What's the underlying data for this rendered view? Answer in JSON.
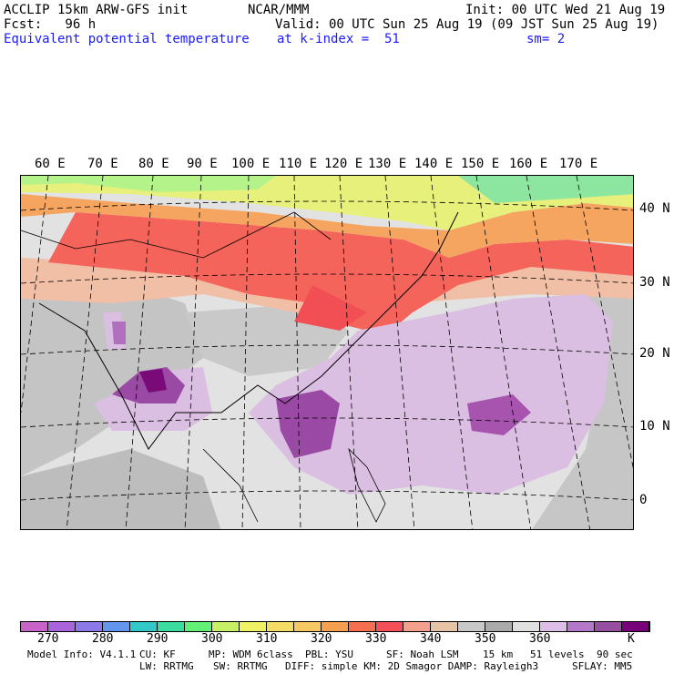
{
  "header": {
    "model": "ACCLIP 15km ARW-GFS init",
    "org": "NCAR/MMM",
    "init": "Init: 00 UTC Wed 21 Aug 19",
    "fcst": "Fcst:   96 h",
    "valid": "Valid: 00 UTC Sun 25 Aug 19 (09 JST Sun 25 Aug 19)",
    "field": "Equivalent potential temperature",
    "level": "at k-index =  51",
    "smoothing": "sm= 2"
  },
  "map": {
    "lon_labels": [
      "60 E",
      "70 E",
      "80 E",
      "90 E",
      "100 E",
      "110 E",
      "120 E",
      "130 E",
      "140 E",
      "150 E",
      "160 E",
      "170 E"
    ],
    "lat_labels": [
      "40 N",
      "30 N",
      "20 N",
      "10 N",
      "0"
    ]
  },
  "colorbar": {
    "colors": [
      "#c864c8",
      "#aa64dc",
      "#8c78e6",
      "#6496f0",
      "#32c8c8",
      "#3cdca0",
      "#64f078",
      "#c8f064",
      "#f0f064",
      "#f5dc64",
      "#f5c864",
      "#f5a050",
      "#f56e50",
      "#f5505a",
      "#f5a08c",
      "#e6c3a5",
      "#c8c8c8",
      "#aaaaaa",
      "#e0e0e0",
      "#dcbee6",
      "#b478c8",
      "#9650a0",
      "#780078"
    ],
    "ticks": [
      "270",
      "280",
      "290",
      "300",
      "310",
      "320",
      "330",
      "340",
      "350",
      "360"
    ],
    "unit": "K"
  },
  "footer": {
    "line1": {
      "model_info": "Model Info: V4.1.1",
      "cu": "CU: KF",
      "mp": "MP: WDM 6class",
      "pbl": "PBL: YSU",
      "sf": "SF: Noah LSM",
      "res": "15 km",
      "levels": "51 levels",
      "dt": "90 sec"
    },
    "line2": {
      "lw": "LW: RRTMG",
      "sw": "SW: RRTMG",
      "diff": "DIFF: simple KM: 2D Smagor DAMP: Rayleigh3",
      "sflay": "SFLAY: MM5"
    }
  }
}
